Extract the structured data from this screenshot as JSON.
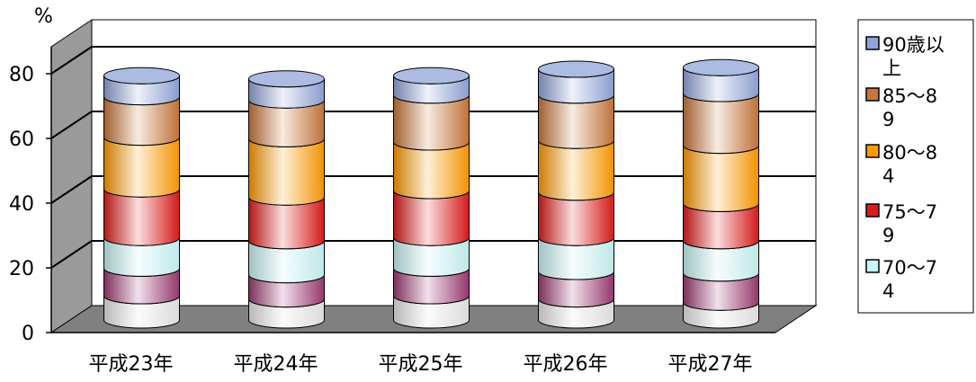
{
  "chart_data": {
    "type": "bar",
    "stacked": true,
    "unit_label": "%",
    "categories": [
      "平成23年",
      "平成24年",
      "平成25年",
      "平成26年",
      "平成27年"
    ],
    "yticks": [
      "0",
      "20",
      "40",
      "60",
      "80"
    ],
    "ylim": [
      0,
      80
    ],
    "grid": true,
    "legend_position": "right",
    "series": [
      {
        "name": "",
        "color": "#e6e6e6",
        "values": [
          7.5,
          6.5,
          7.5,
          6.5,
          5.5
        ]
      },
      {
        "name": "",
        "color": "#9c3a72",
        "values": [
          8.5,
          7.5,
          8.5,
          8.5,
          9.0
        ]
      },
      {
        "name": "70～74",
        "color": "#c8f4f4",
        "values": [
          9.5,
          10.5,
          9.5,
          10.5,
          10.0
        ]
      },
      {
        "name": "75～79",
        "color": "#e01a1a",
        "values": [
          15.0,
          13.5,
          14.5,
          14.0,
          11.5
        ]
      },
      {
        "name": "80～84",
        "color": "#ff9a00",
        "values": [
          16.0,
          18.0,
          15.0,
          16.0,
          18.0
        ]
      },
      {
        "name": "85～89",
        "color": "#c8773a",
        "values": [
          12.5,
          12.0,
          14.5,
          14.0,
          16.0
        ]
      },
      {
        "name": "90歳以上",
        "color": "#8fa4d8",
        "values": [
          6.5,
          6.5,
          6.0,
          8.0,
          8.0
        ]
      }
    ],
    "legend": [
      {
        "name": "90歳以上",
        "color": "#8fa4d8"
      },
      {
        "name": "85～89",
        "color": "#c8773a"
      },
      {
        "name": "80～84",
        "color": "#ff9a00"
      },
      {
        "name": "75～79",
        "color": "#e01a1a"
      },
      {
        "name": "70～74",
        "color": "#c8f4f4"
      }
    ]
  }
}
